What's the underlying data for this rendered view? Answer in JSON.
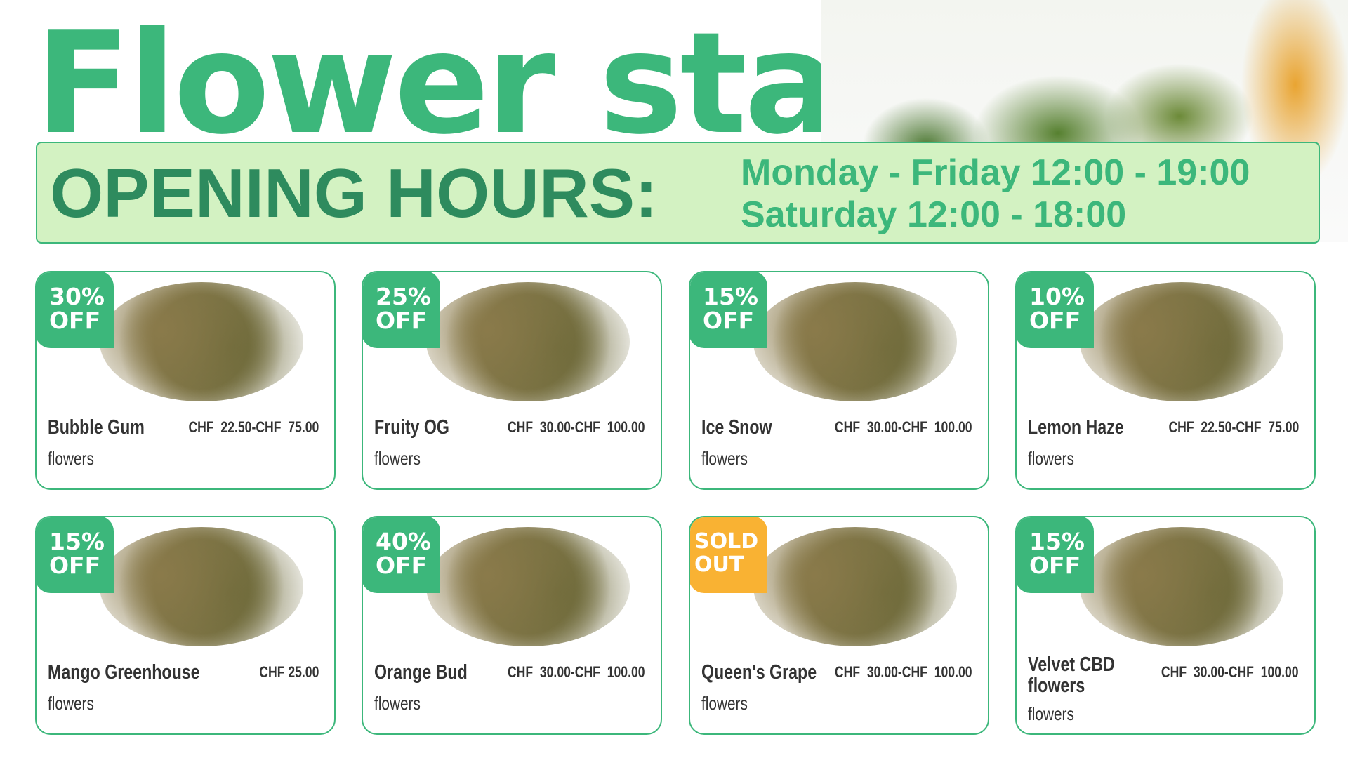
{
  "header": {
    "title": "Flower star"
  },
  "hours": {
    "label": "OPENING HOURS:",
    "weekdays": "Monday - Friday 12:00 - 19:00",
    "saturday": "Saturday 12:00 - 18:00"
  },
  "colors": {
    "brand": "#3cb77b",
    "dark": "#2e8b5e",
    "hours_bg": "#d3f2c2",
    "sold_out": "#f9b233"
  },
  "products": [
    {
      "badge": [
        "30%",
        "OFF"
      ],
      "name": "Bubble Gum",
      "category": "flowers",
      "price": "CHF  22.50-CHF  75.00"
    },
    {
      "badge": [
        "25%",
        "OFF"
      ],
      "name": "Fruity OG",
      "category": "flowers",
      "price": "CHF  30.00-CHF  100.00"
    },
    {
      "badge": [
        "15%",
        "OFF"
      ],
      "name": "Ice Snow",
      "category": "flowers",
      "price": "CHF  30.00-CHF  100.00"
    },
    {
      "badge": [
        "10%",
        "OFF"
      ],
      "name": "Lemon Haze",
      "category": "flowers",
      "price": "CHF  22.50-CHF  75.00"
    },
    {
      "badge": [
        "15%",
        "OFF"
      ],
      "name": "Mango Greenhouse",
      "category": "flowers",
      "price": "CHF 25.00"
    },
    {
      "badge": [
        "40%",
        "OFF"
      ],
      "name": "Orange Bud",
      "category": "flowers",
      "price": "CHF  30.00-CHF  100.00"
    },
    {
      "badge": [
        "SOLD",
        "OUT"
      ],
      "name": "Queen's Grape",
      "category": "flowers",
      "price": "CHF  30.00-CHF  100.00"
    },
    {
      "badge": [
        "15%",
        "OFF"
      ],
      "name": "Velvet CBD flowers",
      "category": "flowers",
      "price": "CHF  30.00-CHF  100.00"
    }
  ]
}
